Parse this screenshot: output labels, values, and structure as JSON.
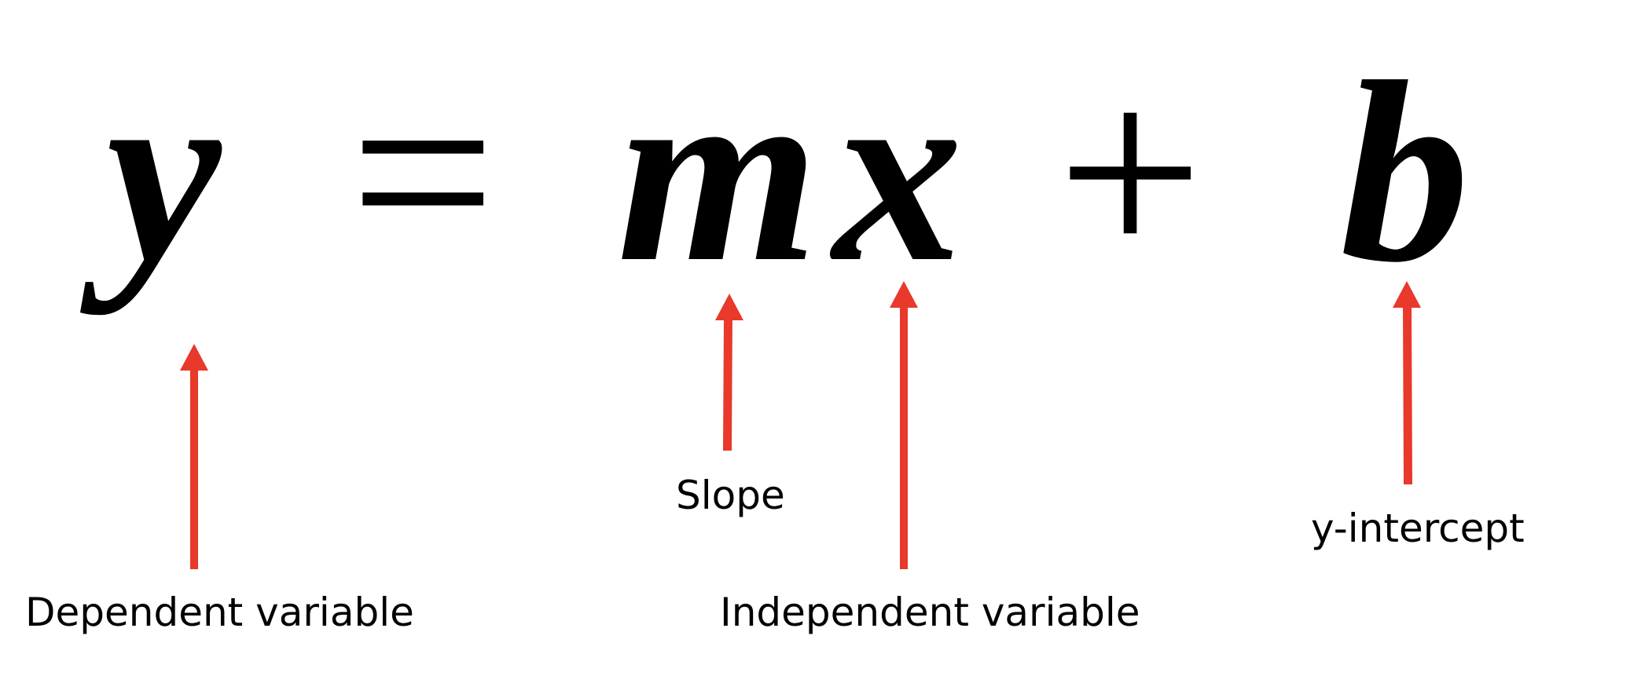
{
  "equation": {
    "y": "y",
    "equals": "=",
    "m": "m",
    "x": "x",
    "plus": "+",
    "b": "b"
  },
  "labels": {
    "dependent": "Dependent variable",
    "slope": "Slope",
    "independent": "Independent variable",
    "intercept": "y-intercept"
  },
  "colors": {
    "arrow": "#e8392b",
    "text": "#000000"
  }
}
